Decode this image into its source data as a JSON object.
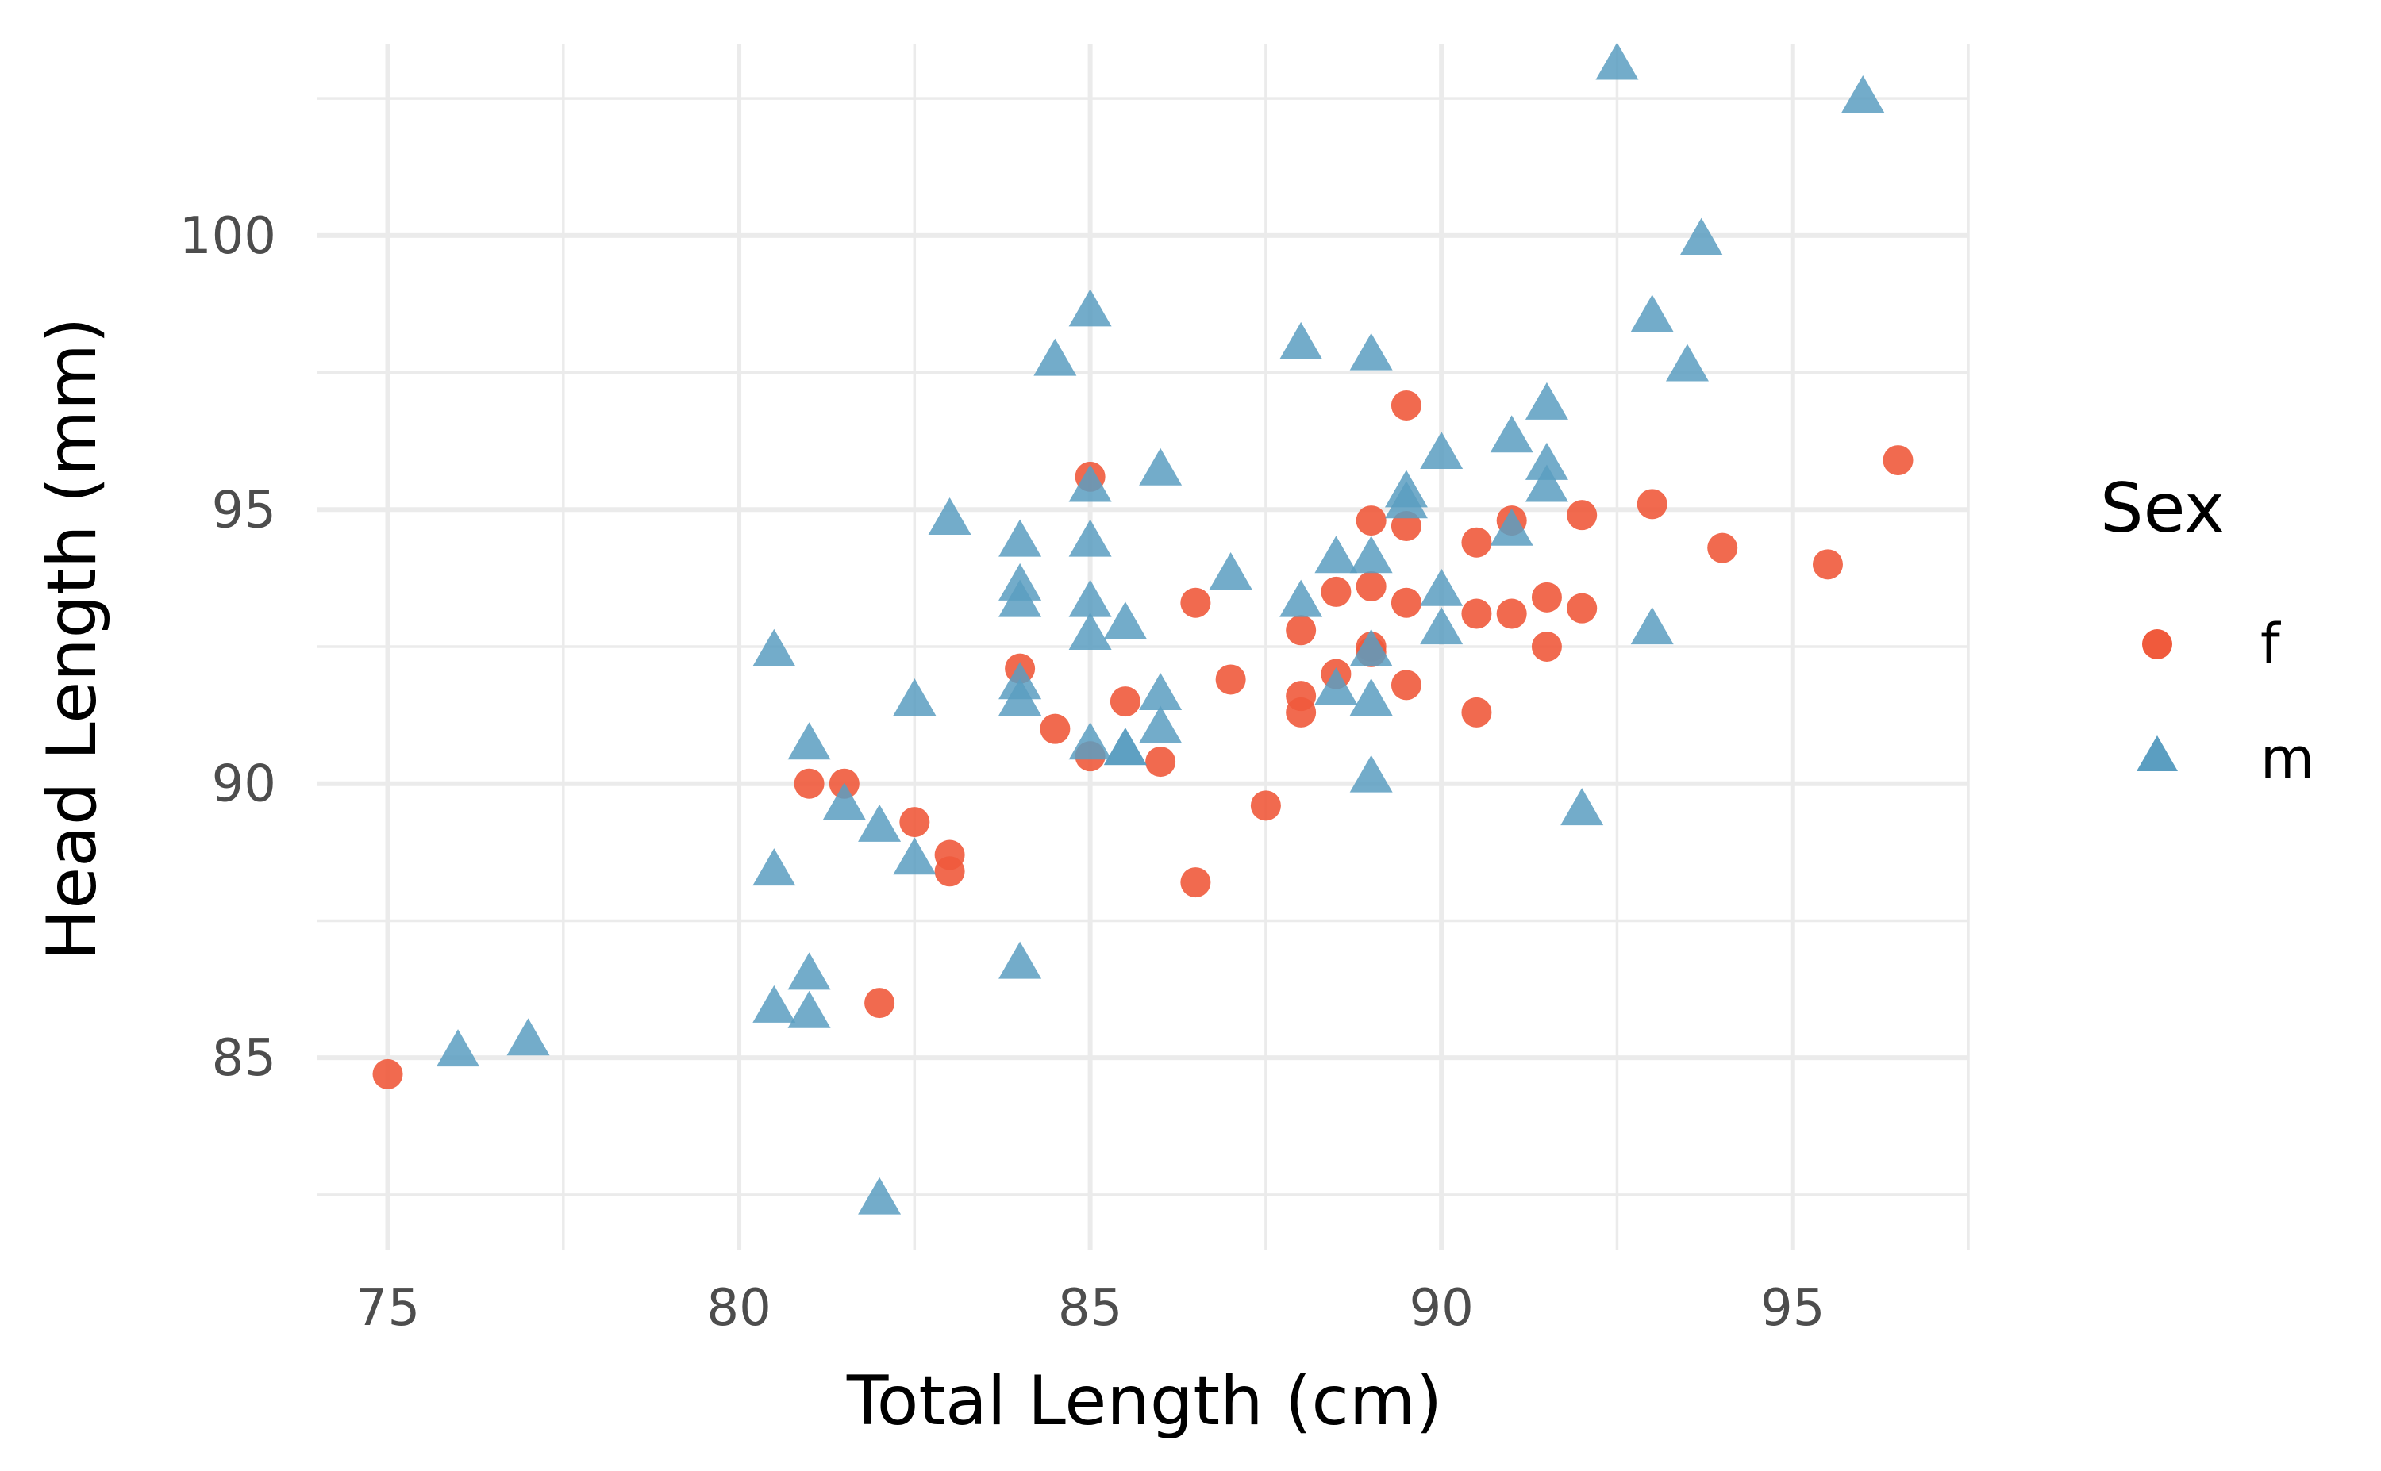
{
  "chart_data": {
    "type": "scatter",
    "xlabel": "Total Length (cm)",
    "ylabel": "Head Length (mm)",
    "xlim": [
      74.0,
      97.5
    ],
    "ylim": [
      81.5,
      103.5
    ],
    "x_ticks": [
      75,
      80,
      85,
      90,
      95
    ],
    "y_ticks": [
      85,
      90,
      95,
      100
    ],
    "grid": true,
    "legend": {
      "title": "Sex",
      "position": "right"
    },
    "series": [
      {
        "name": "f",
        "shape": "circle",
        "color": "#F05A3C",
        "points": [
          [
            75,
            84.7
          ],
          [
            81,
            90.0
          ],
          [
            81.5,
            90.0
          ],
          [
            82,
            86.0
          ],
          [
            82.5,
            89.3
          ],
          [
            83,
            88.7
          ],
          [
            83,
            88.4
          ],
          [
            84,
            92.1
          ],
          [
            84.5,
            91.0
          ],
          [
            85,
            95.6
          ],
          [
            85,
            90.5
          ],
          [
            85.5,
            91.5
          ],
          [
            86,
            90.4
          ],
          [
            86.5,
            93.3
          ],
          [
            86.5,
            88.2
          ],
          [
            87,
            91.9
          ],
          [
            87.5,
            89.6
          ],
          [
            88,
            92.8
          ],
          [
            88,
            91.6
          ],
          [
            88,
            91.3
          ],
          [
            88.5,
            93.5
          ],
          [
            88.5,
            92.0
          ],
          [
            89,
            94.8
          ],
          [
            89,
            93.6
          ],
          [
            89,
            92.5
          ],
          [
            89,
            92.4
          ],
          [
            89.5,
            96.9
          ],
          [
            89.5,
            94.7
          ],
          [
            89.5,
            93.3
          ],
          [
            89.5,
            91.8
          ],
          [
            90.5,
            94.4
          ],
          [
            90.5,
            93.1
          ],
          [
            90.5,
            91.3
          ],
          [
            91,
            94.8
          ],
          [
            91,
            93.1
          ],
          [
            91.5,
            93.4
          ],
          [
            91.5,
            92.5
          ],
          [
            92,
            94.9
          ],
          [
            92,
            93.2
          ],
          [
            93,
            95.1
          ],
          [
            94,
            94.3
          ],
          [
            95.5,
            94.0
          ],
          [
            96.5,
            95.9
          ]
        ]
      },
      {
        "name": "m",
        "shape": "triangle",
        "color": "#5B9EC1",
        "points": [
          [
            76,
            85.1
          ],
          [
            77,
            85.3
          ],
          [
            80.5,
            92.4
          ],
          [
            80.5,
            88.4
          ],
          [
            80.5,
            85.9
          ],
          [
            81,
            90.7
          ],
          [
            81,
            86.5
          ],
          [
            81,
            85.8
          ],
          [
            81.5,
            89.6
          ],
          [
            82,
            89.2
          ],
          [
            82,
            82.4
          ],
          [
            82.5,
            91.5
          ],
          [
            82.5,
            88.6
          ],
          [
            83,
            94.8
          ],
          [
            84,
            94.4
          ],
          [
            84,
            93.6
          ],
          [
            84,
            93.3
          ],
          [
            84,
            91.8
          ],
          [
            84,
            91.5
          ],
          [
            84,
            86.7
          ],
          [
            84.5,
            97.7
          ],
          [
            85,
            98.6
          ],
          [
            85,
            95.4
          ],
          [
            85,
            94.4
          ],
          [
            85,
            93.3
          ],
          [
            85,
            92.7
          ],
          [
            85,
            90.7
          ],
          [
            85.5,
            92.9
          ],
          [
            85.5,
            90.6
          ],
          [
            85.5,
            90.6
          ],
          [
            86,
            95.7
          ],
          [
            86,
            91.6
          ],
          [
            86,
            91.0
          ],
          [
            87,
            93.8
          ],
          [
            88,
            98.0
          ],
          [
            88,
            93.3
          ],
          [
            88.5,
            94.1
          ],
          [
            88.5,
            91.7
          ],
          [
            89,
            97.8
          ],
          [
            89,
            94.1
          ],
          [
            89,
            92.4
          ],
          [
            89,
            91.5
          ],
          [
            89,
            90.1
          ],
          [
            89.5,
            95.3
          ],
          [
            89.5,
            95.1
          ],
          [
            90,
            96.0
          ],
          [
            90,
            93.5
          ],
          [
            90,
            92.8
          ],
          [
            91,
            96.3
          ],
          [
            91,
            94.6
          ],
          [
            91.5,
            96.9
          ],
          [
            91.5,
            95.8
          ],
          [
            91.5,
            95.4
          ],
          [
            92,
            89.5
          ],
          [
            92.5,
            103.1
          ],
          [
            93,
            98.5
          ],
          [
            93,
            92.8
          ],
          [
            93.5,
            97.6
          ],
          [
            93.7,
            99.9
          ],
          [
            96,
            102.5
          ]
        ]
      }
    ]
  }
}
